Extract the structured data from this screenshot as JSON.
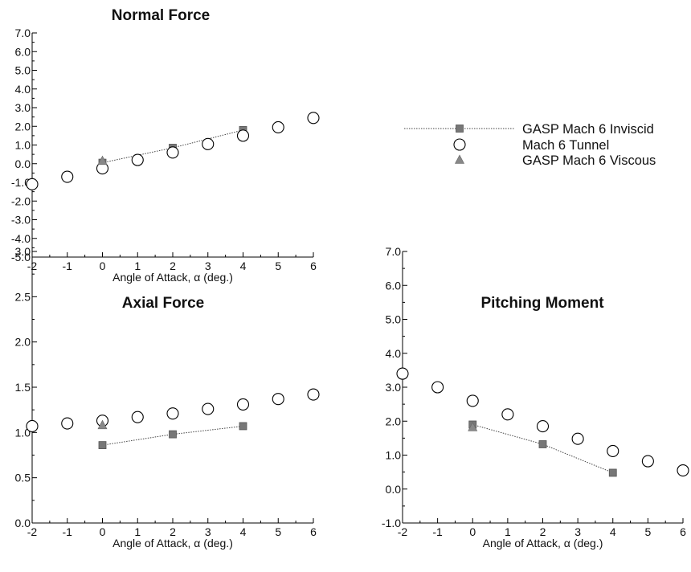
{
  "legend": [
    {
      "label": "GASP Mach 6 Inviscid",
      "marker": "square",
      "line": true
    },
    {
      "label": "Mach 6 Tunnel",
      "marker": "circle",
      "line": false
    },
    {
      "label": "GASP Mach 6 Viscous",
      "marker": "triangle",
      "line": false
    }
  ],
  "colors": {
    "inviscid": "#777777",
    "viscous": "#888888",
    "tunnel": "#000000"
  },
  "chart_data": [
    {
      "type": "scatter",
      "title": "Normal Force",
      "xlabel": "Angle of Attack, α (deg.)",
      "xlim": [
        -2,
        6
      ],
      "ylim": [
        -5,
        7
      ],
      "xticks": [
        "-2",
        "-1",
        "0",
        "1",
        "2",
        "3",
        "4",
        "5",
        "6"
      ],
      "yticks": [
        "-5.0",
        "-4.0",
        "-3.0",
        "-2.0",
        "-1.0",
        "0.0",
        "1.0",
        "2.0",
        "3.0",
        "4.0",
        "5.0",
        "6.0",
        "7.0"
      ],
      "series": [
        {
          "key": "inviscid",
          "x": [
            0,
            2,
            4
          ],
          "y": [
            0.05,
            0.85,
            1.8
          ]
        },
        {
          "key": "tunnel",
          "x": [
            -2,
            -1,
            0,
            1,
            2,
            3,
            4,
            5,
            6
          ],
          "y": [
            -1.1,
            -0.7,
            -0.25,
            0.2,
            0.6,
            1.05,
            1.5,
            1.95,
            2.45
          ]
        },
        {
          "key": "viscous",
          "x": [
            0
          ],
          "y": [
            0.15
          ]
        }
      ]
    },
    {
      "type": "scatter",
      "title": "Axial Force",
      "xlabel": "Angle of Attack, α (deg.)",
      "xlim": [
        -2,
        6
      ],
      "ylim": [
        0,
        3
      ],
      "xticks": [
        "-2",
        "-1",
        "0",
        "1",
        "2",
        "3",
        "4",
        "5",
        "6"
      ],
      "yticks": [
        "0.0",
        "0.5",
        "1.0",
        "1.5",
        "2.0",
        "2.5",
        "3.0"
      ],
      "series": [
        {
          "key": "inviscid",
          "x": [
            0,
            2,
            4
          ],
          "y": [
            0.86,
            0.98,
            1.07
          ]
        },
        {
          "key": "tunnel",
          "x": [
            -2,
            -1,
            0,
            1,
            2,
            3,
            4,
            5,
            6
          ],
          "y": [
            1.07,
            1.1,
            1.13,
            1.17,
            1.21,
            1.26,
            1.31,
            1.37,
            1.42
          ]
        },
        {
          "key": "viscous",
          "x": [
            0
          ],
          "y": [
            1.08
          ]
        }
      ]
    },
    {
      "type": "scatter",
      "title": "Pitching Moment",
      "xlabel": "Angle of Attack, α (deg.)",
      "xlim": [
        -2,
        6
      ],
      "ylim": [
        -1,
        7
      ],
      "xticks": [
        "-2",
        "-1",
        "0",
        "1",
        "2",
        "3",
        "4",
        "5",
        "6"
      ],
      "yticks": [
        "-1.0",
        "0.0",
        "1.0",
        "2.0",
        "3.0",
        "4.0",
        "5.0",
        "6.0",
        "7.0"
      ],
      "series": [
        {
          "key": "inviscid",
          "x": [
            0,
            2,
            4
          ],
          "y": [
            1.9,
            1.32,
            0.48
          ]
        },
        {
          "key": "tunnel",
          "x": [
            -2,
            -1,
            0,
            1,
            2,
            3,
            4,
            5,
            6
          ],
          "y": [
            3.4,
            3.0,
            2.6,
            2.2,
            1.85,
            1.48,
            1.12,
            0.82,
            0.55
          ]
        },
        {
          "key": "viscous",
          "x": [
            0
          ],
          "y": [
            1.82
          ]
        }
      ]
    }
  ]
}
